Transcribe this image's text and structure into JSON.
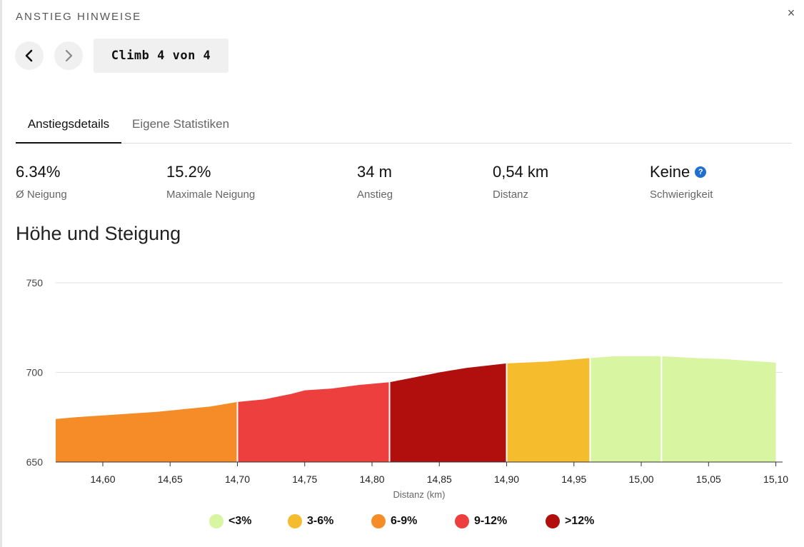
{
  "header": {
    "title": "ANSTIEG HINWEISE",
    "close_label": "×",
    "climb_counter": "Climb 4 von 4"
  },
  "tabs": [
    {
      "label": "Anstiegsdetails",
      "active": true
    },
    {
      "label": "Eigene Statistiken",
      "active": false
    }
  ],
  "stats": [
    {
      "value": "6.34%",
      "label": "Ø Neigung"
    },
    {
      "value": "15.2%",
      "label": "Maximale Neigung"
    },
    {
      "value": "34 m",
      "label": "Anstieg"
    },
    {
      "value": "0,54 km",
      "label": "Distanz"
    },
    {
      "value": "Keine",
      "label": "Schwierigkeit",
      "help": "?"
    }
  ],
  "section_title": "Höhe und Steigung",
  "colors": {
    "lt3": "#d8f5a2",
    "3to6": "#f5bd2e",
    "6to9": "#f68c28",
    "9to12": "#ee3f3f",
    "gt12": "#b10e0e",
    "help_icon": "#1f6fd1"
  },
  "chart_data": {
    "type": "area",
    "title": "",
    "xlabel": "Distanz (km)",
    "ylabel": "",
    "xlim": [
      14.565,
      15.105
    ],
    "ylim": [
      650,
      750
    ],
    "y_ticks": [
      "650",
      "700",
      "750"
    ],
    "x_ticks": [
      "14,60",
      "14,65",
      "14,70",
      "14,75",
      "14,80",
      "14,85",
      "14,90",
      "14,95",
      "15,00",
      "15,05",
      "15,10"
    ],
    "grid": true,
    "x": [
      14.565,
      14.58,
      14.6,
      14.62,
      14.64,
      14.66,
      14.68,
      14.7,
      14.72,
      14.74,
      14.75,
      14.77,
      14.79,
      14.813,
      14.83,
      14.85,
      14.87,
      14.9,
      14.93,
      14.962,
      14.98,
      15.0,
      15.015,
      15.04,
      15.06,
      15.08,
      15.1
    ],
    "y": [
      674,
      675,
      676,
      677,
      678,
      679.5,
      681,
      683.5,
      685,
      688,
      690,
      691,
      693,
      694.5,
      697,
      700,
      702.5,
      705,
      706,
      708,
      709,
      709,
      709,
      708,
      707.5,
      706.5,
      705.5
    ],
    "segments": [
      {
        "from": 14.565,
        "to": 14.7,
        "category": "6-9%"
      },
      {
        "from": 14.7,
        "to": 14.813,
        "category": "9-12%"
      },
      {
        "from": 14.813,
        "to": 14.9,
        "category": ">12%"
      },
      {
        "from": 14.9,
        "to": 14.962,
        "category": "3-6%"
      },
      {
        "from": 14.962,
        "to": 15.015,
        "category": "<3%"
      },
      {
        "from": 15.015,
        "to": 15.1,
        "category": "<3%"
      }
    ],
    "legend": [
      {
        "label": "<3%",
        "color": "#d8f5a2"
      },
      {
        "label": "3-6%",
        "color": "#f5bd2e"
      },
      {
        "label": "6-9%",
        "color": "#f68c28"
      },
      {
        "label": "9-12%",
        "color": "#ee3f3f"
      },
      {
        "label": ">12%",
        "color": "#b10e0e"
      }
    ],
    "legend_placement": "bottom"
  }
}
